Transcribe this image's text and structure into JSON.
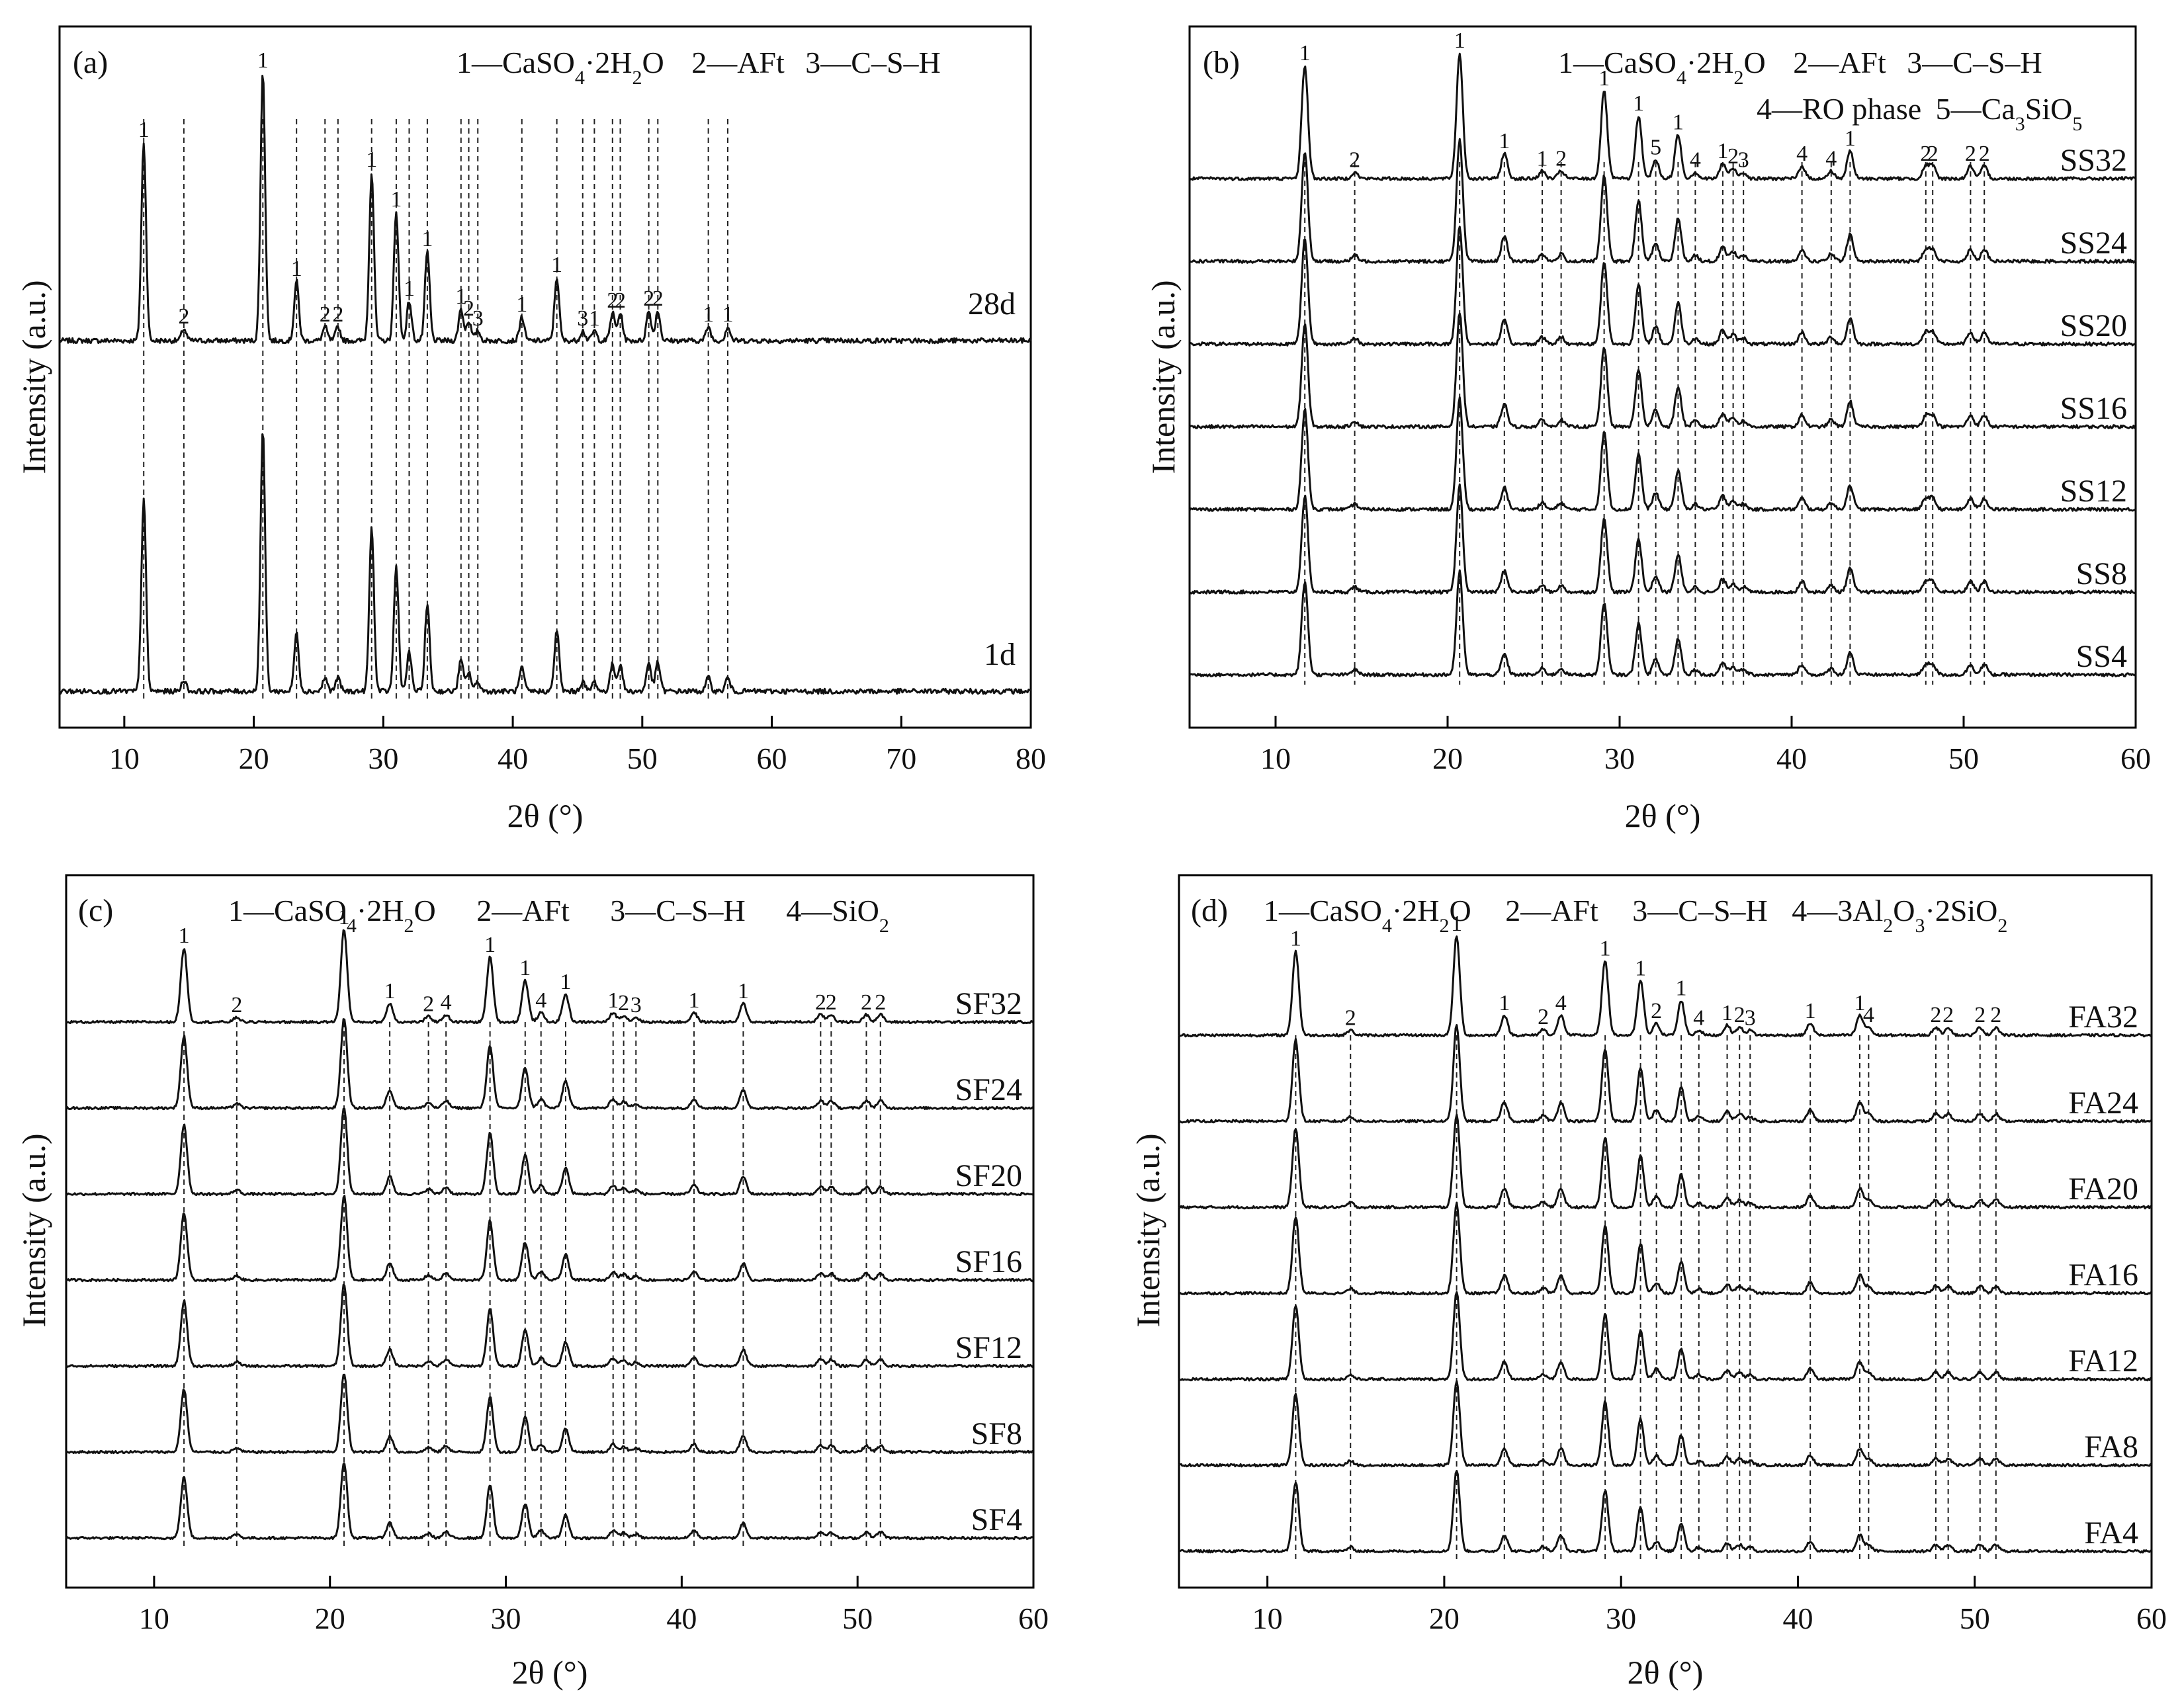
{
  "chart_data": [
    {
      "panel": "(a)",
      "type": "line",
      "x_range": [
        5,
        80
      ],
      "x_ticks": [
        "10",
        "20",
        "30",
        "40",
        "50",
        "60",
        "70",
        "80"
      ],
      "xlabel": "2θ (°)",
      "ylabel": "Intensity (a.u.)",
      "legend": [
        {
          "id": "1",
          "phase": "CaSO4·2H2O"
        },
        {
          "id": "2",
          "phase": "AFt"
        },
        {
          "id": "3",
          "phase": "C–S–H"
        }
      ],
      "series": [
        {
          "name": "28d",
          "order": 0
        },
        {
          "name": "1d",
          "order": 1
        }
      ],
      "peaks": [
        {
          "x": 11.5,
          "id": "1",
          "h": 1.0
        },
        {
          "x": 14.6,
          "id": "2",
          "h": 0.06
        },
        {
          "x": 20.7,
          "id": "1",
          "h": 1.35
        },
        {
          "x": 23.3,
          "id": "1",
          "h": 0.3
        },
        {
          "x": 25.5,
          "id": "2",
          "h": 0.07
        },
        {
          "x": 26.5,
          "id": "2",
          "h": 0.07
        },
        {
          "x": 29.1,
          "id": "1",
          "h": 0.85
        },
        {
          "x": 31.0,
          "id": "1",
          "h": 0.65
        },
        {
          "x": 32.0,
          "id": "1",
          "h": 0.2
        },
        {
          "x": 33.4,
          "id": "1",
          "h": 0.45
        },
        {
          "x": 36.0,
          "id": "1",
          "h": 0.16
        },
        {
          "x": 36.6,
          "id": "2",
          "h": 0.1
        },
        {
          "x": 37.3,
          "id": "3",
          "h": 0.05
        },
        {
          "x": 40.7,
          "id": "1",
          "h": 0.12
        },
        {
          "x": 43.4,
          "id": "1",
          "h": 0.32
        },
        {
          "x": 45.4,
          "id": "3",
          "h": 0.05
        },
        {
          "x": 46.3,
          "id": "1",
          "h": 0.05
        },
        {
          "x": 47.7,
          "id": "2",
          "h": 0.14
        },
        {
          "x": 48.3,
          "id": "2",
          "h": 0.14
        },
        {
          "x": 50.5,
          "id": "2",
          "h": 0.15
        },
        {
          "x": 51.2,
          "id": "2",
          "h": 0.15
        },
        {
          "x": 55.1,
          "id": "1",
          "h": 0.07
        },
        {
          "x": 56.6,
          "id": "1",
          "h": 0.07
        }
      ]
    },
    {
      "panel": "(b)",
      "type": "line",
      "x_range": [
        5,
        60
      ],
      "x_ticks": [
        "10",
        "20",
        "30",
        "40",
        "50",
        "60"
      ],
      "xlabel": "2θ (°)",
      "ylabel": "Intensity (a.u.)",
      "legend": [
        {
          "id": "1",
          "phase": "CaSO4·2H2O"
        },
        {
          "id": "2",
          "phase": "AFt"
        },
        {
          "id": "3",
          "phase": "C–S–H"
        },
        {
          "id": "4",
          "phase": "RO phase"
        },
        {
          "id": "5",
          "phase": "Ca3SiO5"
        }
      ],
      "series": [
        {
          "name": "SS32",
          "order": 0
        },
        {
          "name": "SS24",
          "order": 1
        },
        {
          "name": "SS20",
          "order": 2
        },
        {
          "name": "SS16",
          "order": 3
        },
        {
          "name": "SS12",
          "order": 4
        },
        {
          "name": "SS8",
          "order": 5
        },
        {
          "name": "SS4",
          "order": 6
        }
      ],
      "peaks": [
        {
          "x": 11.7,
          "id": "1",
          "h": 0.9
        },
        {
          "x": 14.6,
          "id": "2",
          "h": 0.05
        },
        {
          "x": 20.7,
          "id": "1",
          "h": 1.0
        },
        {
          "x": 23.3,
          "id": "1",
          "h": 0.2
        },
        {
          "x": 25.5,
          "id": "1",
          "h": 0.06
        },
        {
          "x": 26.6,
          "id": "2",
          "h": 0.06
        },
        {
          "x": 29.1,
          "id": "1",
          "h": 0.7
        },
        {
          "x": 31.1,
          "id": "1",
          "h": 0.5
        },
        {
          "x": 32.1,
          "id": "5",
          "h": 0.15
        },
        {
          "x": 33.4,
          "id": "1",
          "h": 0.35
        },
        {
          "x": 34.4,
          "id": "4",
          "h": 0.05
        },
        {
          "x": 36.0,
          "id": "1",
          "h": 0.12
        },
        {
          "x": 36.6,
          "id": "2",
          "h": 0.08
        },
        {
          "x": 37.2,
          "id": "3",
          "h": 0.05
        },
        {
          "x": 40.6,
          "id": "4",
          "h": 0.1
        },
        {
          "x": 42.3,
          "id": "4",
          "h": 0.06
        },
        {
          "x": 43.4,
          "id": "1",
          "h": 0.22
        },
        {
          "x": 47.8,
          "id": "2",
          "h": 0.1
        },
        {
          "x": 48.2,
          "id": "2",
          "h": 0.1
        },
        {
          "x": 50.4,
          "id": "2",
          "h": 0.1
        },
        {
          "x": 51.2,
          "id": "2",
          "h": 0.1
        }
      ]
    },
    {
      "panel": "(c)",
      "type": "line",
      "x_range": [
        5,
        60
      ],
      "x_ticks": [
        "10",
        "20",
        "30",
        "40",
        "50",
        "60"
      ],
      "xlabel": "2θ (°)",
      "ylabel": "Intensity (a.u.)",
      "legend": [
        {
          "id": "1",
          "phase": "CaSO4·2H2O"
        },
        {
          "id": "2",
          "phase": "AFt"
        },
        {
          "id": "3",
          "phase": "C–S–H"
        },
        {
          "id": "4",
          "phase": "SiO2"
        }
      ],
      "series": [
        {
          "name": "SF32",
          "order": 0
        },
        {
          "name": "SF24",
          "order": 1
        },
        {
          "name": "SF20",
          "order": 2
        },
        {
          "name": "SF16",
          "order": 3
        },
        {
          "name": "SF12",
          "order": 4
        },
        {
          "name": "SF8",
          "order": 5
        },
        {
          "name": "SF4",
          "order": 6
        }
      ],
      "peaks": [
        {
          "x": 11.7,
          "id": "1",
          "h": 0.8
        },
        {
          "x": 14.7,
          "id": "2",
          "h": 0.05
        },
        {
          "x": 20.8,
          "id": "1",
          "h": 1.0
        },
        {
          "x": 23.4,
          "id": "1",
          "h": 0.2
        },
        {
          "x": 25.6,
          "id": "2",
          "h": 0.06
        },
        {
          "x": 26.6,
          "id": "4",
          "h": 0.08
        },
        {
          "x": 29.1,
          "id": "1",
          "h": 0.7
        },
        {
          "x": 31.1,
          "id": "1",
          "h": 0.45
        },
        {
          "x": 32.0,
          "id": "4",
          "h": 0.1
        },
        {
          "x": 33.4,
          "id": "1",
          "h": 0.3
        },
        {
          "x": 36.1,
          "id": "1",
          "h": 0.1
        },
        {
          "x": 36.7,
          "id": "2",
          "h": 0.07
        },
        {
          "x": 37.4,
          "id": "3",
          "h": 0.05
        },
        {
          "x": 40.7,
          "id": "1",
          "h": 0.1
        },
        {
          "x": 43.5,
          "id": "1",
          "h": 0.2
        },
        {
          "x": 47.9,
          "id": "2",
          "h": 0.08
        },
        {
          "x": 48.5,
          "id": "2",
          "h": 0.08
        },
        {
          "x": 50.5,
          "id": "2",
          "h": 0.08
        },
        {
          "x": 51.3,
          "id": "2",
          "h": 0.08
        }
      ]
    },
    {
      "panel": "(d)",
      "type": "line",
      "x_range": [
        5,
        60
      ],
      "x_ticks": [
        "10",
        "20",
        "30",
        "40",
        "50",
        "60"
      ],
      "xlabel": "2θ (°)",
      "ylabel": "Intensity (a.u.)",
      "legend": [
        {
          "id": "1",
          "phase": "CaSO4·2H2O"
        },
        {
          "id": "2",
          "phase": "AFt"
        },
        {
          "id": "3",
          "phase": "C–S–H"
        },
        {
          "id": "4",
          "phase": "3Al2O3·2SiO2"
        }
      ],
      "series": [
        {
          "name": "FA32",
          "order": 0
        },
        {
          "name": "FA24",
          "order": 1
        },
        {
          "name": "FA20",
          "order": 2
        },
        {
          "name": "FA16",
          "order": 3
        },
        {
          "name": "FA12",
          "order": 4
        },
        {
          "name": "FA8",
          "order": 5
        },
        {
          "name": "FA4",
          "order": 6
        }
      ],
      "peaks": [
        {
          "x": 11.6,
          "id": "1",
          "h": 0.85
        },
        {
          "x": 14.7,
          "id": "2",
          "h": 0.05
        },
        {
          "x": 20.7,
          "id": "1",
          "h": 1.0
        },
        {
          "x": 23.4,
          "id": "1",
          "h": 0.2
        },
        {
          "x": 25.6,
          "id": "2",
          "h": 0.06
        },
        {
          "x": 26.6,
          "id": "4",
          "h": 0.2
        },
        {
          "x": 29.1,
          "id": "1",
          "h": 0.75
        },
        {
          "x": 31.1,
          "id": "1",
          "h": 0.55
        },
        {
          "x": 32.0,
          "id": "2",
          "h": 0.12
        },
        {
          "x": 33.4,
          "id": "1",
          "h": 0.35
        },
        {
          "x": 34.4,
          "id": "4",
          "h": 0.05
        },
        {
          "x": 36.0,
          "id": "1",
          "h": 0.1
        },
        {
          "x": 36.7,
          "id": "2",
          "h": 0.08
        },
        {
          "x": 37.3,
          "id": "3",
          "h": 0.05
        },
        {
          "x": 40.7,
          "id": "1",
          "h": 0.12
        },
        {
          "x": 43.5,
          "id": "1",
          "h": 0.2
        },
        {
          "x": 44.0,
          "id": "4",
          "h": 0.08
        },
        {
          "x": 47.8,
          "id": "2",
          "h": 0.08
        },
        {
          "x": 48.5,
          "id": "2",
          "h": 0.08
        },
        {
          "x": 50.3,
          "id": "2",
          "h": 0.08
        },
        {
          "x": 51.2,
          "id": "2",
          "h": 0.08
        }
      ]
    }
  ]
}
